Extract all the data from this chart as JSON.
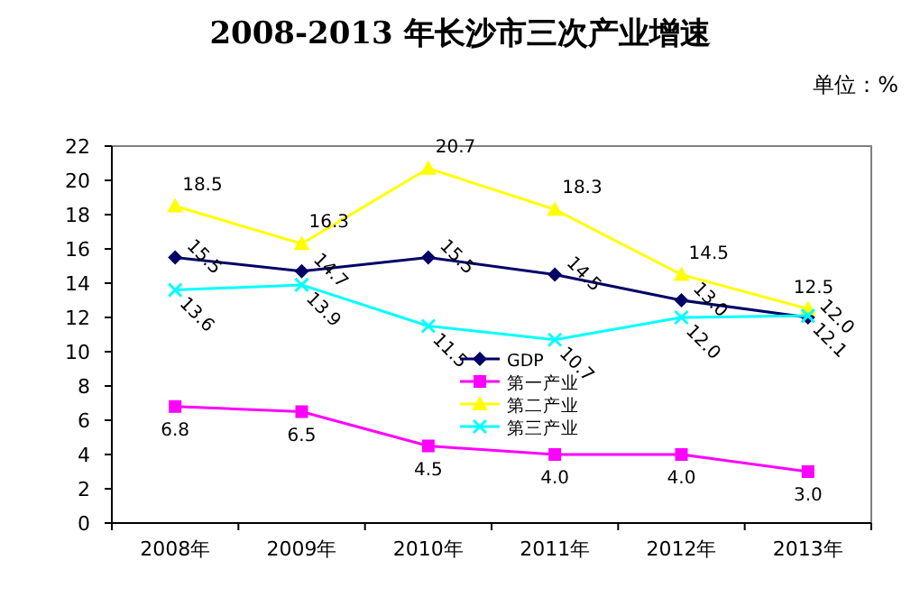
{
  "chart_data": {
    "type": "line",
    "title": "2008-2013 年长沙市三次产业增速",
    "subtitle": "单位：%",
    "categories": [
      "2008年",
      "2009年",
      "2010年",
      "2011年",
      "2012年",
      "2013年"
    ],
    "ylim": [
      0,
      22
    ],
    "yticks": [
      0,
      2,
      4,
      6,
      8,
      10,
      12,
      14,
      16,
      18,
      20,
      22
    ],
    "grid": false,
    "legend": "bottom",
    "series": [
      {
        "name": "GDP",
        "color": "#000066",
        "marker": "diamond",
        "values": [
          15.5,
          14.7,
          15.5,
          14.5,
          13.0,
          12.0
        ],
        "value_labels": [
          "15.5",
          "14.7",
          "15.5",
          "14.5",
          "13.0",
          "12.0"
        ]
      },
      {
        "name": "第一产业",
        "color": "#ff00ff",
        "marker": "square",
        "values": [
          6.8,
          6.5,
          4.5,
          4.0,
          4.0,
          3.0
        ],
        "value_labels": [
          "6.8",
          "6.5",
          "4.5",
          "4.0",
          "4.0",
          "3.0"
        ]
      },
      {
        "name": "第二产业",
        "color": "#ffff00",
        "marker": "triangle",
        "values": [
          18.5,
          16.3,
          20.7,
          18.3,
          14.5,
          12.5
        ],
        "value_labels": [
          "18.5",
          "16.3",
          "20.7",
          "18.3",
          "14.5",
          "12.5"
        ]
      },
      {
        "name": "第三产业",
        "color": "#00ffff",
        "marker": "cross",
        "values": [
          13.6,
          13.9,
          11.5,
          10.7,
          12.0,
          12.1
        ],
        "value_labels": [
          "13.6",
          "13.9",
          "11.5",
          "10.7",
          "12.0",
          "12.1"
        ]
      }
    ]
  }
}
